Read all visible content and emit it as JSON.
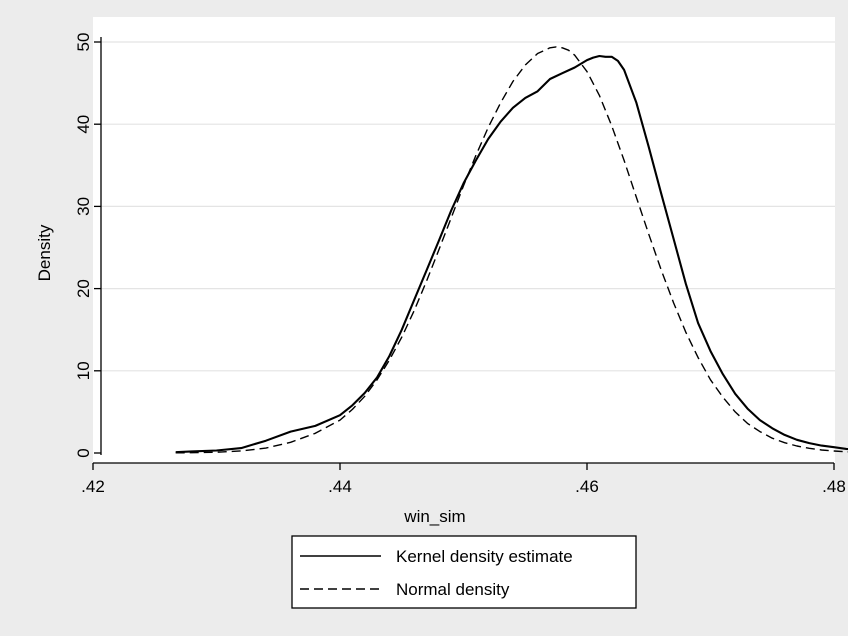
{
  "chart_data": {
    "type": "line",
    "title": "",
    "xlabel": "win_sim",
    "ylabel": "Density",
    "xlim": [
      0.42,
      0.485
    ],
    "ylim": [
      0,
      50
    ],
    "x_ticks": [
      0.42,
      0.44,
      0.46,
      0.48
    ],
    "x_tick_labels": [
      ".42",
      ".44",
      ".46",
      ".48"
    ],
    "y_ticks": [
      0,
      10,
      20,
      30,
      40,
      50
    ],
    "y_tick_labels": [
      "0",
      "10",
      "20",
      "30",
      "40",
      "50"
    ],
    "grid": "horizontal",
    "legend_position": "bottom",
    "series": [
      {
        "name": "Kernel density estimate",
        "style": "solid",
        "color": "#000000",
        "x": [
          0.4267,
          0.428,
          0.43,
          0.432,
          0.434,
          0.436,
          0.438,
          0.44,
          0.441,
          0.442,
          0.443,
          0.444,
          0.445,
          0.446,
          0.447,
          0.448,
          0.449,
          0.45,
          0.451,
          0.452,
          0.453,
          0.454,
          0.455,
          0.456,
          0.457,
          0.458,
          0.459,
          0.46,
          0.4605,
          0.461,
          0.4615,
          0.462,
          0.4625,
          0.463,
          0.464,
          0.465,
          0.466,
          0.467,
          0.468,
          0.469,
          0.47,
          0.471,
          0.472,
          0.473,
          0.474,
          0.475,
          0.476,
          0.477,
          0.478,
          0.479,
          0.48,
          0.481,
          0.482,
          0.483,
          0.484
        ],
        "values": [
          0.1,
          0.2,
          0.3,
          0.6,
          1.5,
          2.6,
          3.3,
          4.6,
          5.8,
          7.3,
          9.2,
          11.8,
          15.0,
          18.6,
          22.2,
          25.8,
          29.5,
          32.8,
          35.6,
          38.2,
          40.3,
          42.0,
          43.2,
          44.0,
          45.5,
          46.2,
          46.9,
          47.8,
          48.1,
          48.3,
          48.2,
          48.2,
          47.7,
          46.6,
          42.6,
          37.2,
          31.6,
          26.1,
          20.6,
          15.8,
          12.4,
          9.6,
          7.2,
          5.4,
          4.0,
          3.0,
          2.2,
          1.6,
          1.2,
          0.9,
          0.7,
          0.5,
          0.35,
          0.25,
          0.2
        ]
      },
      {
        "name": "Normal density",
        "style": "dashed",
        "color": "#000000",
        "x": [
          0.4267,
          0.428,
          0.43,
          0.432,
          0.434,
          0.436,
          0.438,
          0.44,
          0.441,
          0.442,
          0.443,
          0.444,
          0.445,
          0.446,
          0.447,
          0.448,
          0.449,
          0.45,
          0.451,
          0.452,
          0.453,
          0.454,
          0.455,
          0.456,
          0.457,
          0.4575,
          0.458,
          0.4585,
          0.459,
          0.46,
          0.461,
          0.462,
          0.463,
          0.464,
          0.465,
          0.466,
          0.467,
          0.468,
          0.469,
          0.47,
          0.471,
          0.472,
          0.473,
          0.474,
          0.475,
          0.476,
          0.477,
          0.478,
          0.479,
          0.48,
          0.481,
          0.482,
          0.483,
          0.484
        ],
        "values": [
          0.02,
          0.04,
          0.1,
          0.25,
          0.6,
          1.3,
          2.4,
          4.0,
          5.3,
          6.9,
          8.9,
          11.3,
          14.1,
          17.3,
          20.9,
          24.7,
          28.6,
          32.5,
          36.2,
          39.6,
          42.6,
          45.2,
          47.2,
          48.6,
          49.3,
          49.4,
          49.3,
          49.0,
          48.4,
          46.4,
          43.5,
          39.8,
          35.6,
          31.1,
          26.6,
          22.3,
          18.3,
          14.7,
          11.6,
          8.9,
          6.8,
          5.0,
          3.6,
          2.6,
          1.8,
          1.25,
          0.85,
          0.57,
          0.37,
          0.24,
          0.15,
          0.09,
          0.06,
          0.03
        ]
      }
    ]
  }
}
